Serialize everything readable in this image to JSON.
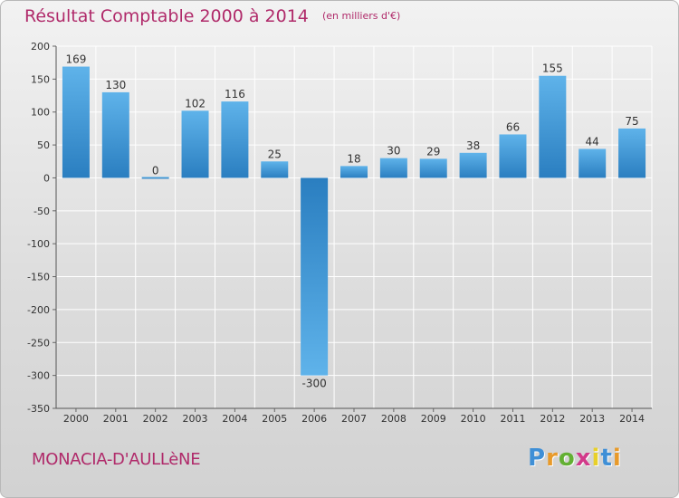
{
  "title": "Résultat Comptable 2000 à 2014",
  "unit": "(en milliers d'€)",
  "commune": "MONACIA-D'AULLèNE",
  "logo": {
    "letters": [
      "P",
      "r",
      "o",
      "x",
      "i",
      "t",
      "i"
    ],
    "colors": [
      "#3f8fd6",
      "#e89a2a",
      "#63b033",
      "#d23a8a",
      "#e8d02a",
      "#3f8fd6",
      "#e89a2a"
    ]
  },
  "colors": {
    "title": "#b02a6a",
    "bar_top": "#5fb3ea",
    "bar_bottom": "#2a7ec0",
    "grid": "#ffffff"
  },
  "chart_data": {
    "type": "bar",
    "title": "Résultat Comptable 2000 à 2014",
    "subtitle": "(en milliers d'€)",
    "categories": [
      "2000",
      "2001",
      "2002",
      "2003",
      "2004",
      "2005",
      "2006",
      "2007",
      "2008",
      "2009",
      "2010",
      "2011",
      "2012",
      "2013",
      "2014"
    ],
    "values": [
      169,
      130,
      0,
      102,
      116,
      25,
      -300,
      18,
      30,
      29,
      38,
      66,
      155,
      44,
      75
    ],
    "xlabel": "",
    "ylabel": "",
    "ylim": [
      -350,
      200
    ],
    "yticks": [
      200,
      150,
      100,
      50,
      0,
      -50,
      -100,
      -150,
      -200,
      -250,
      -300,
      -350
    ],
    "grid": true
  }
}
